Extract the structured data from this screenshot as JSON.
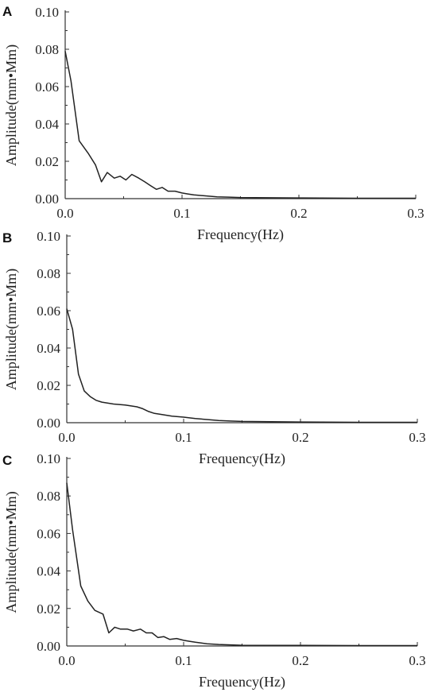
{
  "chart_data": [
    {
      "type": "line",
      "panel_label": "A",
      "xlabel": "Frequency(Hz)",
      "ylabel": "Amplitude(mm•Mm)",
      "xlim": [
        0.0,
        0.3
      ],
      "ylim": [
        0.0,
        0.1
      ],
      "x_ticks": [
        "0.0",
        "0.1",
        "0.2",
        "0.3"
      ],
      "y_ticks": [
        "0.00",
        "0.02",
        "0.04",
        "0.06",
        "0.08",
        "0.10"
      ],
      "grid": false,
      "series": [
        {
          "x": [
            0.0,
            0.005,
            0.012,
            0.02,
            0.026,
            0.031,
            0.036,
            0.042,
            0.047,
            0.052,
            0.057,
            0.063,
            0.068,
            0.073,
            0.078,
            0.083,
            0.088,
            0.094,
            0.1,
            0.105,
            0.11,
            0.12,
            0.13,
            0.14,
            0.15,
            0.2,
            0.25,
            0.3
          ],
          "y": [
            0.079,
            0.063,
            0.031,
            0.024,
            0.018,
            0.009,
            0.014,
            0.011,
            0.012,
            0.01,
            0.013,
            0.011,
            0.009,
            0.007,
            0.005,
            0.006,
            0.004,
            0.004,
            0.003,
            0.0025,
            0.002,
            0.0015,
            0.001,
            0.0008,
            0.0006,
            0.0004,
            0.0002,
            0.0002
          ]
        }
      ]
    },
    {
      "type": "line",
      "panel_label": "B",
      "xlabel": "Frequency(Hz)",
      "ylabel": "Amplitude(mm•Mm)",
      "xlim": [
        0.0,
        0.3
      ],
      "ylim": [
        0.0,
        0.1
      ],
      "x_ticks": [
        "0.0",
        "0.1",
        "0.2",
        "0.3"
      ],
      "y_ticks": [
        "0.00",
        "0.02",
        "0.04",
        "0.06",
        "0.08",
        "0.10"
      ],
      "grid": false,
      "series": [
        {
          "x": [
            0.0,
            0.005,
            0.01,
            0.015,
            0.02,
            0.025,
            0.03,
            0.04,
            0.05,
            0.055,
            0.06,
            0.065,
            0.07,
            0.075,
            0.08,
            0.09,
            0.1,
            0.11,
            0.12,
            0.13,
            0.14,
            0.15,
            0.2,
            0.25,
            0.3
          ],
          "y": [
            0.061,
            0.05,
            0.026,
            0.017,
            0.014,
            0.012,
            0.011,
            0.01,
            0.0095,
            0.009,
            0.0085,
            0.0075,
            0.006,
            0.005,
            0.0045,
            0.0035,
            0.003,
            0.0022,
            0.0017,
            0.0012,
            0.0009,
            0.0007,
            0.0004,
            0.0002,
            0.0002
          ]
        }
      ]
    },
    {
      "type": "line",
      "panel_label": "C",
      "xlabel": "Frequency(Hz)",
      "ylabel": "Amplitude(mm•Mm)",
      "xlim": [
        0.0,
        0.3
      ],
      "ylim": [
        0.0,
        0.1
      ],
      "x_ticks": [
        "0.0",
        "0.1",
        "0.2",
        "0.3"
      ],
      "y_ticks": [
        "0.00",
        "0.02",
        "0.04",
        "0.06",
        "0.08",
        "0.10"
      ],
      "grid": false,
      "series": [
        {
          "x": [
            0.0,
            0.005,
            0.012,
            0.018,
            0.024,
            0.031,
            0.036,
            0.041,
            0.046,
            0.052,
            0.057,
            0.063,
            0.068,
            0.073,
            0.078,
            0.083,
            0.088,
            0.094,
            0.1,
            0.105,
            0.11,
            0.12,
            0.13,
            0.14,
            0.15,
            0.2,
            0.25,
            0.3
          ],
          "y": [
            0.087,
            0.062,
            0.032,
            0.024,
            0.019,
            0.017,
            0.007,
            0.01,
            0.009,
            0.009,
            0.008,
            0.009,
            0.007,
            0.007,
            0.0045,
            0.005,
            0.0035,
            0.004,
            0.003,
            0.0025,
            0.002,
            0.0012,
            0.0008,
            0.0006,
            0.0004,
            0.0003,
            0.0002,
            0.0002
          ]
        }
      ]
    }
  ]
}
